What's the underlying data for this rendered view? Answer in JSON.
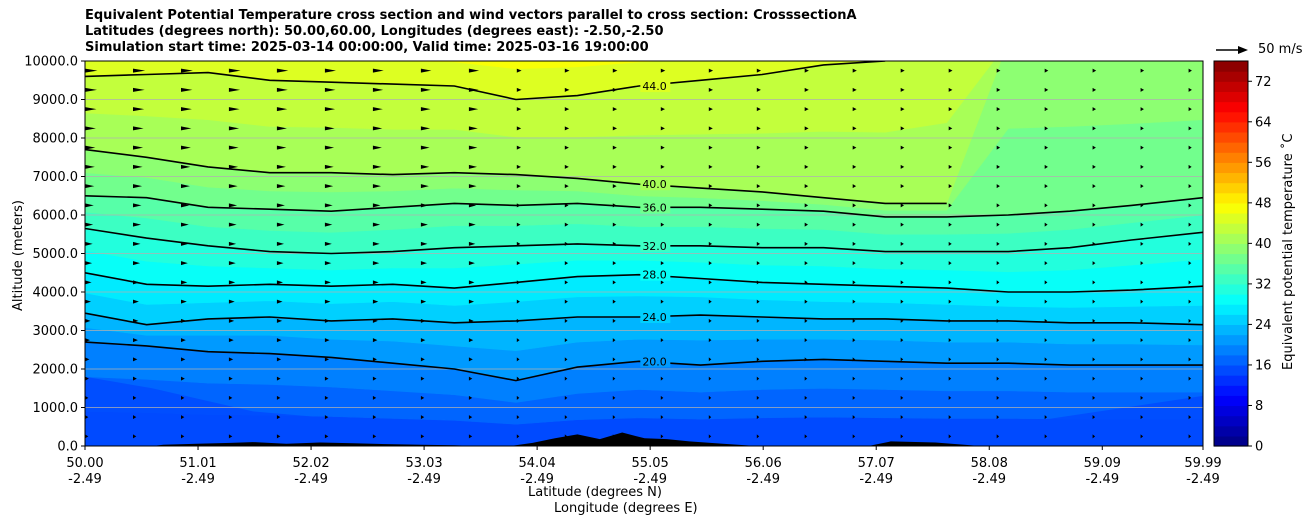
{
  "title": {
    "line1": "Equivalent Potential Temperature cross section and wind vectors parallel to cross section: CrosssectionA",
    "line2": "Latitudes (degrees north): 50.00,60.00, Longitudes (degrees east): -2.50,-2.50",
    "line3": "Simulation start time: 2025-03-14 00:00:00, Valid time: 2025-03-16 19:00:00"
  },
  "chart_data": {
    "type": "contour",
    "ylabel": "Altitude (meters)",
    "xlabel_lat": "Latitude (degrees N)",
    "xlabel_lon": "Longitude (degrees E)",
    "ylim": [
      0,
      10000
    ],
    "xlim": [
      50.0,
      59.99
    ],
    "yticks": [
      "0.0",
      "1000.0",
      "2000.0",
      "3000.0",
      "4000.0",
      "5000.0",
      "6000.0",
      "7000.0",
      "8000.0",
      "9000.0",
      "10000.0"
    ],
    "ytick_values": [
      0,
      1000,
      2000,
      3000,
      4000,
      5000,
      6000,
      7000,
      8000,
      9000,
      10000
    ],
    "xticks": [
      {
        "lat": "50.00",
        "lon": "-2.49",
        "value": 50.0
      },
      {
        "lat": "51.01",
        "lon": "-2.49",
        "value": 51.01
      },
      {
        "lat": "52.02",
        "lon": "-2.49",
        "value": 52.02
      },
      {
        "lat": "53.03",
        "lon": "-2.49",
        "value": 53.03
      },
      {
        "lat": "54.04",
        "lon": "-2.49",
        "value": 54.04
      },
      {
        "lat": "55.05",
        "lon": "-2.49",
        "value": 55.05
      },
      {
        "lat": "56.06",
        "lon": "-2.49",
        "value": 56.06
      },
      {
        "lat": "57.07",
        "lon": "-2.49",
        "value": 57.07
      },
      {
        "lat": "58.08",
        "lon": "-2.49",
        "value": 58.08
      },
      {
        "lat": "59.09",
        "lon": "-2.49",
        "value": 59.09
      },
      {
        "lat": "59.99",
        "lon": "-2.49",
        "value": 59.99
      }
    ],
    "grid_horizontal": true,
    "colorbar": {
      "label": "Equivalent potential temperature ˚C",
      "min": 0,
      "max": 76,
      "step": 2,
      "ticks": [
        "0",
        "8",
        "16",
        "24",
        "32",
        "40",
        "48",
        "56",
        "64",
        "72"
      ],
      "tick_values": [
        0,
        8,
        16,
        24,
        32,
        40,
        48,
        56,
        64,
        72
      ]
    },
    "contours": [
      {
        "level": 20,
        "label": "20.0",
        "alt": [
          2700,
          2600,
          2450,
          2400,
          2300,
          2150,
          2000,
          1700,
          2050,
          2200,
          2100,
          2200,
          2250,
          2200,
          2150,
          2150,
          2100,
          2100,
          2100
        ],
        "label_lat": 54.98
      },
      {
        "level": 24,
        "label": "24.0",
        "alt": [
          3450,
          3150,
          3300,
          3350,
          3250,
          3300,
          3200,
          3250,
          3350,
          3350,
          3400,
          3350,
          3300,
          3300,
          3250,
          3250,
          3200,
          3200,
          3150
        ],
        "label_lat": 54.98
      },
      {
        "level": 28,
        "label": "28.0",
        "alt": [
          4500,
          4200,
          4150,
          4200,
          4150,
          4200,
          4100,
          4250,
          4400,
          4450,
          4350,
          4250,
          4200,
          4150,
          4100,
          4000,
          4000,
          4050,
          4150
        ],
        "label_lat": 54.98
      },
      {
        "level": 32,
        "label": "32.0",
        "alt": [
          5650,
          5400,
          5200,
          5050,
          5000,
          5050,
          5150,
          5200,
          5250,
          5200,
          5200,
          5150,
          5150,
          5050,
          5050,
          5050,
          5150,
          5350,
          5550
        ],
        "label_lat": 54.98
      },
      {
        "level": 36,
        "label": "36.0",
        "alt": [
          6500,
          6450,
          6200,
          6150,
          6100,
          6200,
          6300,
          6250,
          6300,
          6200,
          6200,
          6150,
          6100,
          5950,
          5950,
          6000,
          6100,
          6250,
          6450
        ],
        "label_lat": 54.98
      },
      {
        "level": 40,
        "label": "40.0",
        "alt": [
          7700,
          7500,
          7250,
          7100,
          7100,
          7050,
          7100,
          7050,
          6950,
          6800,
          6700,
          6600,
          6450,
          6300,
          6300,
          null,
          null,
          null,
          null
        ],
        "label_lat": 54.98
      },
      {
        "level": 44,
        "label": "44.0",
        "alt": [
          9600,
          9650,
          9700,
          9500,
          9450,
          9400,
          9350,
          9000,
          9100,
          9350,
          9500,
          9650,
          9900,
          10000,
          null,
          null,
          null,
          null,
          null
        ],
        "label_lat": 54.98
      }
    ],
    "contour_x": [
      50.0,
      50.55,
      51.1,
      51.65,
      52.2,
      52.75,
      53.3,
      53.85,
      54.4,
      54.95,
      55.5,
      56.05,
      56.6,
      57.15,
      57.7,
      58.25,
      58.8,
      59.35,
      59.99
    ],
    "wind_reference": {
      "label": "50 m/s",
      "speed": 50
    }
  }
}
